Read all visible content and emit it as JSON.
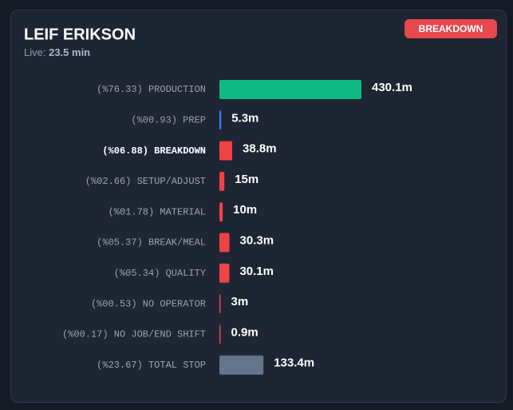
{
  "chart_data": {
    "type": "bar",
    "orientation": "horizontal",
    "title": "LEIF ERIKSON",
    "subtitle_label": "Live:",
    "subtitle_value": "23.5 min",
    "badge": "BREAKDOWN",
    "categories": [
      "(%76.33) PRODUCTION",
      "(%00.93) PREP",
      "(%06.88) BREAKDOWN",
      "(%02.66) SETUP/ADJUST",
      "(%01.78) MATERIAL",
      "(%05.37) BREAK/MEAL",
      "(%05.34) QUALITY",
      "(%00.53) NO OPERATOR",
      "(%00.17) NO JOB/END SHIFT",
      "(%23.67) TOTAL STOP"
    ],
    "values": [
      430.1,
      5.3,
      38.8,
      15,
      10,
      30.3,
      30.1,
      3,
      0.9,
      133.4
    ],
    "value_labels": [
      "430.1m",
      "5.3m",
      "38.8m",
      "15m",
      "10m",
      "30.3m",
      "30.1m",
      "3m",
      "0.9m",
      "133.4m"
    ],
    "colors": [
      "#10b981",
      "#3b82f6",
      "#ef4444",
      "#ef4444",
      "#ef4444",
      "#ef4444",
      "#ef4444",
      "#ef4444",
      "#ef4444",
      "#64748b"
    ],
    "highlight_index": 2
  }
}
